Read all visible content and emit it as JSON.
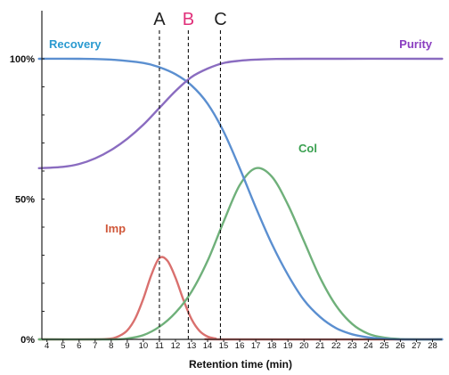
{
  "chart_data": {
    "type": "line",
    "xlabel": "Retention time (min)",
    "ylabel": "",
    "xlim": [
      3.5,
      28.6
    ],
    "ylim": [
      0,
      105
    ],
    "x_ticks": [
      4,
      5,
      6,
      7,
      8,
      9,
      10,
      11,
      12,
      13,
      14,
      15,
      16,
      17,
      18,
      19,
      20,
      21,
      22,
      23,
      24,
      25,
      26,
      27,
      28
    ],
    "y_ticks": [
      {
        "value": 0,
        "label": "0%"
      },
      {
        "value": 50,
        "label": "50%"
      },
      {
        "value": 100,
        "label": "100%"
      }
    ],
    "markers": [
      {
        "label": "A",
        "x": 11.0,
        "color": "#222222"
      },
      {
        "label": "B",
        "x": 12.8,
        "color": "#e0307a"
      },
      {
        "label": "C",
        "x": 14.8,
        "color": "#222222"
      }
    ],
    "series": [
      {
        "name": "Recovery",
        "color": "#5b8fd0",
        "label_color": "#2a9ad0",
        "points": [
          [
            3.5,
            100
          ],
          [
            6,
            100
          ],
          [
            8,
            99.7
          ],
          [
            10,
            98.5
          ],
          [
            11,
            97
          ],
          [
            12,
            94.5
          ],
          [
            13,
            90.5
          ],
          [
            14,
            84
          ],
          [
            15,
            74
          ],
          [
            16,
            61
          ],
          [
            17,
            47
          ],
          [
            18,
            34
          ],
          [
            19,
            23
          ],
          [
            20,
            14
          ],
          [
            21,
            8
          ],
          [
            22,
            4
          ],
          [
            23,
            1.8
          ],
          [
            24,
            0.7
          ],
          [
            25,
            0.2
          ],
          [
            26,
            0
          ],
          [
            28.6,
            0
          ]
        ]
      },
      {
        "name": "Purity",
        "color": "#8a6cc0",
        "label_color": "#8a3ec0",
        "points": [
          [
            3.5,
            61
          ],
          [
            5,
            61.5
          ],
          [
            6,
            62.5
          ],
          [
            7,
            64.5
          ],
          [
            8,
            67.5
          ],
          [
            9,
            71.5
          ],
          [
            10,
            76.5
          ],
          [
            11,
            82.5
          ],
          [
            12,
            88.5
          ],
          [
            13,
            93.5
          ],
          [
            14,
            96.5
          ],
          [
            15,
            98.5
          ],
          [
            16,
            99.3
          ],
          [
            17,
            99.7
          ],
          [
            18,
            99.9
          ],
          [
            20,
            100
          ],
          [
            28.6,
            100
          ]
        ]
      },
      {
        "name": "Imp",
        "color": "#d9706e",
        "label_color": "#d0583a",
        "points": [
          [
            3.5,
            0
          ],
          [
            7,
            0
          ],
          [
            8,
            0.3
          ],
          [
            8.5,
            1.2
          ],
          [
            9,
            3.2
          ],
          [
            9.5,
            7.5
          ],
          [
            10,
            14.5
          ],
          [
            10.5,
            23
          ],
          [
            11,
            29
          ],
          [
            11.5,
            28
          ],
          [
            12,
            22
          ],
          [
            12.5,
            14
          ],
          [
            13,
            7.2
          ],
          [
            13.5,
            3
          ],
          [
            14,
            1
          ],
          [
            14.5,
            0.3
          ],
          [
            15,
            0
          ],
          [
            28.6,
            0
          ]
        ]
      },
      {
        "name": "Col",
        "color": "#6fb07a",
        "label_color": "#3aa050",
        "points": [
          [
            3.5,
            0
          ],
          [
            8,
            0
          ],
          [
            9,
            0.3
          ],
          [
            10,
            1.5
          ],
          [
            11,
            4.5
          ],
          [
            12,
            9.5
          ],
          [
            13,
            17
          ],
          [
            14,
            28
          ],
          [
            15,
            42
          ],
          [
            16,
            55
          ],
          [
            17,
            61
          ],
          [
            18,
            58
          ],
          [
            19,
            48
          ],
          [
            20,
            35
          ],
          [
            21,
            22
          ],
          [
            22,
            12
          ],
          [
            23,
            5.5
          ],
          [
            24,
            2
          ],
          [
            25,
            0.6
          ],
          [
            26,
            0.1
          ],
          [
            27,
            0
          ],
          [
            28.6,
            0
          ]
        ]
      }
    ]
  }
}
